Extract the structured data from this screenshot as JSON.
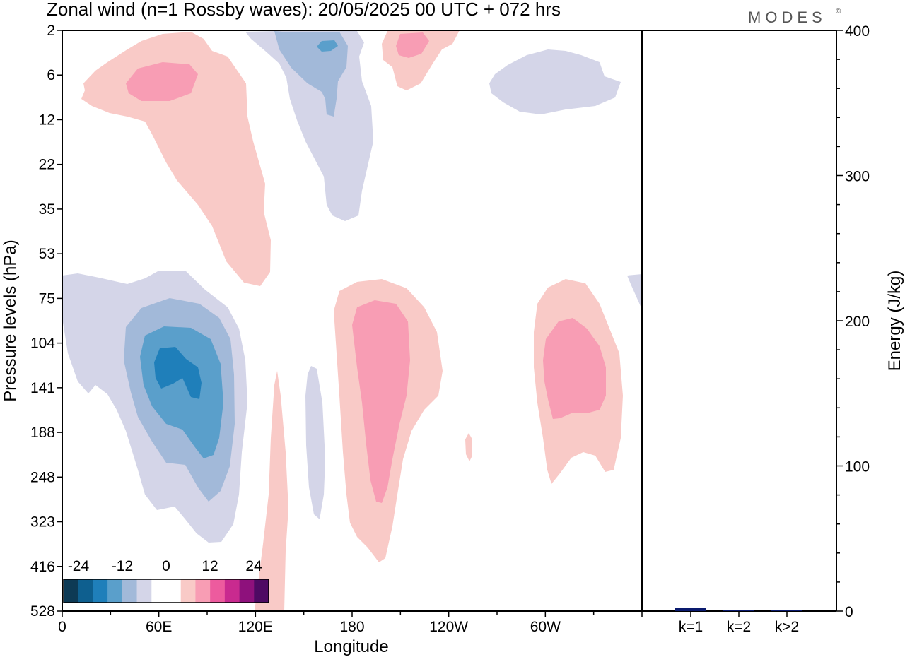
{
  "header": {
    "title": "Zonal wind (n=1 Rossby waves):  20/05/2025  00 UTC  + 072 hrs",
    "brand": "MODES",
    "brand_mark": "©"
  },
  "chart_data": [
    {
      "type": "heatmap",
      "title": "Zonal wind (n=1 Rossby waves):  20/05/2025  00 UTC  + 072 hrs",
      "xlabel": "Longitude",
      "ylabel": "Pressure levels (hPa)",
      "x_ticks": [
        "0",
        "60E",
        "120E",
        "180",
        "120W",
        "60W"
      ],
      "x_tick_values": [
        0,
        60,
        120,
        180,
        240,
        300
      ],
      "xlim": [
        0,
        360
      ],
      "y_ticks": [
        "2",
        "6",
        "12",
        "22",
        "35",
        "53",
        "75",
        "104",
        "141",
        "188",
        "248",
        "323",
        "416",
        "528"
      ],
      "y_axis": "pressure levels (top to bottom)",
      "colorbar": {
        "tick_labels": [
          "-24",
          "-12",
          "0",
          "12",
          "24"
        ],
        "colors": [
          "#0d3a55",
          "#0e5f8f",
          "#1f7fba",
          "#5a9fcb",
          "#a2b9d9",
          "#d4d5e8",
          "#ffffff",
          "#ffffff",
          "#f9cac7",
          "#f89db4",
          "#ed5b9e",
          "#c92a8f",
          "#8e117c",
          "#4e0a63"
        ]
      },
      "contour_colors": {
        "neg_weak": "#d4d5e8",
        "neg_mod": "#a2b9d9",
        "neg_strong": "#5a9fcb",
        "neg_max": "#1f7fba",
        "pos_weak": "#f9cac7",
        "pos_mod": "#f89db4",
        "pos_strong": "#ed5b9e"
      }
    },
    {
      "type": "bar",
      "categories": [
        "k=1",
        "k=2",
        "k>2"
      ],
      "values": [
        2,
        0.5,
        0.5
      ],
      "ylabel": "Energy (J/kg)",
      "ylim": [
        0,
        400
      ],
      "y_ticks": [
        0,
        100,
        200,
        300,
        400
      ],
      "bar_color": "#0a1a6e"
    }
  ]
}
